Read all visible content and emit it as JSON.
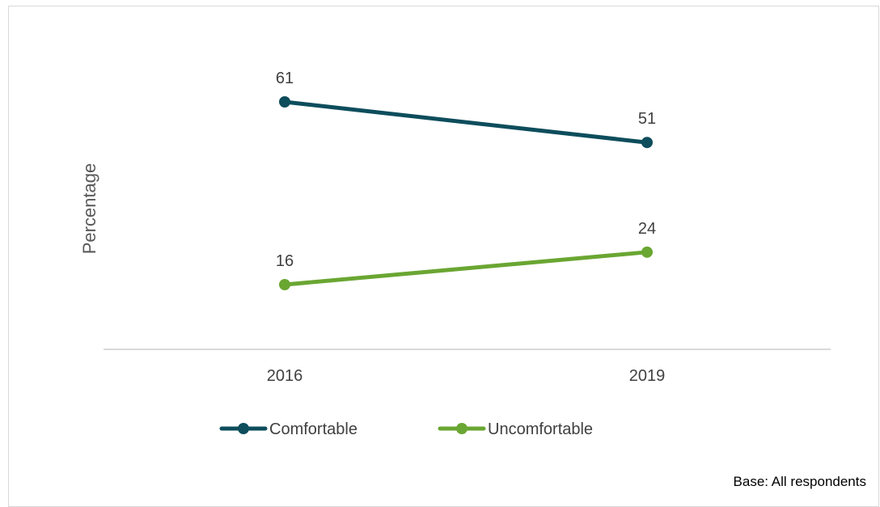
{
  "chart_data": {
    "type": "line",
    "x": [
      "2016",
      "2019"
    ],
    "ylabel": "Percentage",
    "xlabel": "",
    "ylim": [
      0,
      75
    ],
    "grid": false,
    "legend_position": "bottom",
    "series": [
      {
        "name": "Comfortable",
        "values": [
          61,
          51
        ],
        "color": "#0d4d5c"
      },
      {
        "name": "Uncomfortable",
        "values": [
          16,
          24
        ],
        "color": "#6aa632"
      }
    ],
    "axis_color": "#d9d9d9"
  },
  "footnote": "Base: All respondents"
}
